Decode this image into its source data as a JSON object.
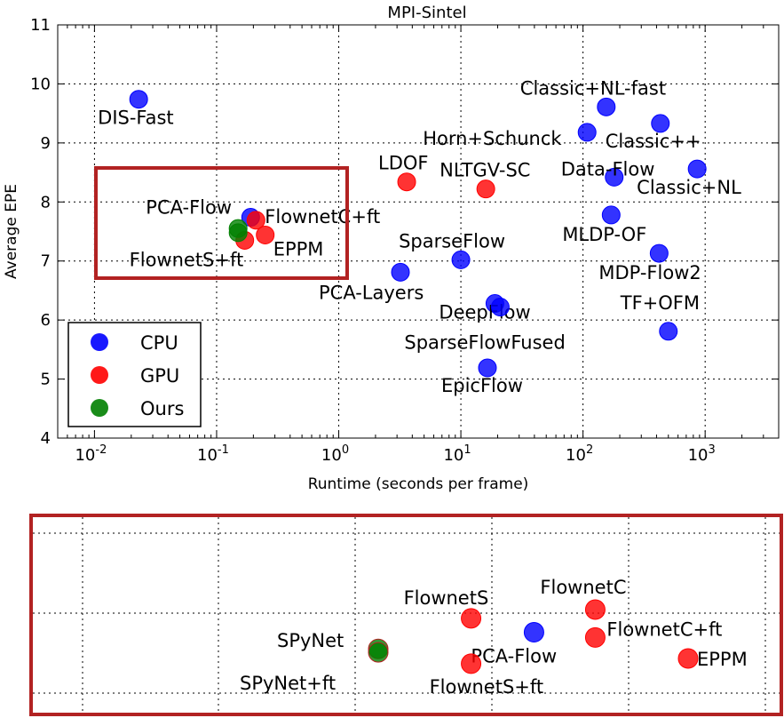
{
  "chart_data": [
    {
      "type": "scatter",
      "title": "MPI-Sintel",
      "xlabel": "Runtime (seconds per frame)",
      "ylabel": "Average EPE",
      "xscale": "log",
      "xlim": [
        0.005,
        4000
      ],
      "ylim": [
        4,
        11
      ],
      "xticks": [
        "10^-2",
        "10^-1",
        "10^0",
        "10^1",
        "10^2",
        "10^3"
      ],
      "yticks": [
        "4",
        "5",
        "6",
        "7",
        "8",
        "9",
        "10",
        "11"
      ],
      "grid": true,
      "legend": {
        "position": "lower-left",
        "entries": [
          {
            "label": "CPU",
            "color": "#0000ff"
          },
          {
            "label": "GPU",
            "color": "#ff0000"
          },
          {
            "label": "Ours",
            "color": "#008000"
          }
        ]
      },
      "highlight_box_color": "#b22222",
      "points": [
        {
          "label": "DIS-Fast",
          "x": 0.023,
          "y": 9.74,
          "group": "CPU"
        },
        {
          "label": "Classic+NL-fast",
          "x": 155,
          "y": 9.61,
          "group": "CPU"
        },
        {
          "label": "Horn+Schunck",
          "x": 108,
          "y": 9.18,
          "group": "CPU"
        },
        {
          "label": "Classic++",
          "x": 430,
          "y": 9.33,
          "group": "CPU"
        },
        {
          "label": "Data-Flow",
          "x": 180,
          "y": 8.42,
          "group": "CPU"
        },
        {
          "label": "Classic+NL",
          "x": 860,
          "y": 8.56,
          "group": "CPU"
        },
        {
          "label": "LDOF",
          "x": 3.6,
          "y": 8.34,
          "group": "GPU"
        },
        {
          "label": "NLTGV-SC",
          "x": 16,
          "y": 8.22,
          "group": "GPU"
        },
        {
          "label": "PCA-Flow",
          "x": 0.19,
          "y": 7.74,
          "group": "CPU"
        },
        {
          "label": "FlownetC+ft",
          "x": 0.21,
          "y": 7.69,
          "group": "GPU"
        },
        {
          "label": "EPPM",
          "x": 0.25,
          "y": 7.44,
          "group": "GPU"
        },
        {
          "label": "FlownetS+ft",
          "x": 0.17,
          "y": 7.35,
          "group": "GPU"
        },
        {
          "label": "",
          "x": 0.15,
          "y": 7.55,
          "group": "Ours"
        },
        {
          "label": "",
          "x": 0.15,
          "y": 7.48,
          "group": "Ours"
        },
        {
          "label": "MLDP-OF",
          "x": 170,
          "y": 7.78,
          "group": "CPU"
        },
        {
          "label": "SparseFlow",
          "x": 10,
          "y": 7.02,
          "group": "CPU"
        },
        {
          "label": "MDP-Flow2",
          "x": 420,
          "y": 7.13,
          "group": "CPU"
        },
        {
          "label": "PCA-Layers",
          "x": 3.2,
          "y": 6.81,
          "group": "CPU"
        },
        {
          "label": "DeepFlow",
          "x": 19,
          "y": 6.28,
          "group": "CPU"
        },
        {
          "label": "SparseFlowFused",
          "x": 21,
          "y": 6.22,
          "group": "CPU"
        },
        {
          "label": "TF+OFM",
          "x": 500,
          "y": 5.81,
          "group": "CPU"
        },
        {
          "label": "EpicFlow",
          "x": 16.5,
          "y": 5.19,
          "group": "CPU"
        }
      ]
    },
    {
      "type": "scatter",
      "title": "",
      "description_zoom_of": "highlighted region",
      "points": [
        {
          "label": "FlownetS",
          "x": 0.08,
          "y": 7.9,
          "group": "GPU"
        },
        {
          "label": "FlownetC",
          "x": 0.15,
          "y": 8.0,
          "group": "GPU"
        },
        {
          "label": "SPyNet",
          "x": 0.05,
          "y": 7.55,
          "group": "Ours"
        },
        {
          "label": "SPyNet+ft",
          "x": 0.05,
          "y": 7.51,
          "group": "Ours"
        },
        {
          "label": "PCA-Flow",
          "x": 0.11,
          "y": 7.74,
          "group": "CPU"
        },
        {
          "label": "FlownetC+ft",
          "x": 0.15,
          "y": 7.68,
          "group": "GPU"
        },
        {
          "label": "EPPM",
          "x": 0.24,
          "y": 7.44,
          "group": "GPU"
        },
        {
          "label": "FlownetS+ft",
          "x": 0.08,
          "y": 7.38,
          "group": "GPU"
        }
      ]
    }
  ]
}
